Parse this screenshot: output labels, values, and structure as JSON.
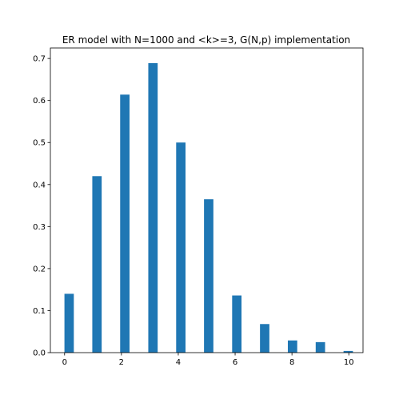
{
  "chart_data": {
    "type": "bar",
    "title": "ER model with N=1000 and <k>=3, G(N,p) implementation",
    "xlabel": "",
    "ylabel": "",
    "xlim": [
      -0.5,
      10.5
    ],
    "ylim": [
      0,
      0.725
    ],
    "xticks": [
      0,
      2,
      4,
      6,
      8,
      10
    ],
    "yticks": [
      0.0,
      0.1,
      0.2,
      0.3,
      0.4,
      0.5,
      0.6,
      0.7
    ],
    "ytick_labels": [
      "0.0",
      "0.1",
      "0.2",
      "0.3",
      "0.4",
      "0.5",
      "0.6",
      "0.7"
    ],
    "bar_width": 0.33,
    "x": [
      0.16,
      1.14,
      2.12,
      3.11,
      4.09,
      5.07,
      6.06,
      7.04,
      8.02,
      9.0,
      9.98
    ],
    "values": [
      0.14,
      0.42,
      0.614,
      0.689,
      0.5,
      0.365,
      0.136,
      0.068,
      0.029,
      0.025,
      0.004
    ],
    "bar_color": "#1f77b4",
    "grid": false,
    "legend": "none"
  }
}
